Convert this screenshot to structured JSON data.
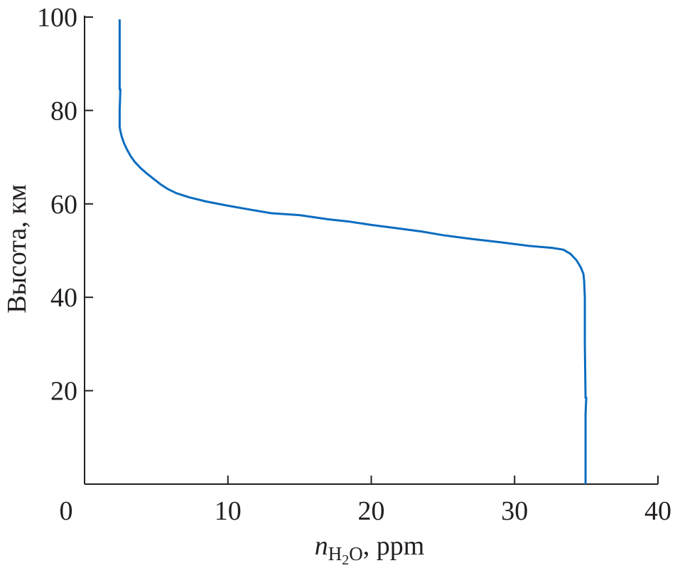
{
  "chart_data": {
    "type": "line",
    "title": "",
    "xlabel": {
      "italic": "n",
      "subscript": "H",
      "subscript_digit": "2",
      "subscript_end": "O",
      "suffix": ", ppm"
    },
    "ylabel": "Высота, км",
    "xlim": [
      0,
      40
    ],
    "ylim": [
      0,
      100
    ],
    "x_ticks": [
      0,
      10,
      20,
      30,
      40
    ],
    "y_ticks": [
      20,
      40,
      60,
      80,
      100
    ],
    "grid": false,
    "legend": "none",
    "series": [
      {
        "color": "#0b6cbf",
        "points": [
          [
            34.95,
            0
          ],
          [
            34.95,
            15
          ],
          [
            35.0,
            18.5
          ],
          [
            34.95,
            18.5
          ],
          [
            34.9,
            30
          ],
          [
            34.9,
            40
          ],
          [
            34.85,
            43.5
          ],
          [
            34.8,
            45
          ],
          [
            34.6,
            46.5
          ],
          [
            34.3,
            48
          ],
          [
            33.9,
            49.3
          ],
          [
            33.4,
            50.2
          ],
          [
            32.6,
            50.6
          ],
          [
            31.0,
            51.0
          ],
          [
            29.0,
            51.8
          ],
          [
            27.0,
            52.5
          ],
          [
            25.0,
            53.3
          ],
          [
            23.5,
            54.1
          ],
          [
            22.0,
            54.7
          ],
          [
            20.0,
            55.5
          ],
          [
            18.5,
            56.2
          ],
          [
            17.0,
            56.7
          ],
          [
            15.0,
            57.6
          ],
          [
            13.0,
            58.0
          ],
          [
            11.5,
            58.8
          ],
          [
            10.0,
            59.6
          ],
          [
            8.5,
            60.5
          ],
          [
            7.3,
            61.4
          ],
          [
            6.4,
            62.3
          ],
          [
            5.8,
            63.2
          ],
          [
            5.3,
            64.2
          ],
          [
            4.8,
            65.4
          ],
          [
            4.3,
            66.6
          ],
          [
            3.9,
            67.7
          ],
          [
            3.5,
            69.0
          ],
          [
            3.2,
            70.3
          ],
          [
            2.95,
            71.7
          ],
          [
            2.75,
            73.0
          ],
          [
            2.6,
            74.3
          ],
          [
            2.5,
            75.6
          ],
          [
            2.45,
            76.5
          ],
          [
            2.45,
            80
          ],
          [
            2.5,
            84.5
          ],
          [
            2.45,
            84.5
          ],
          [
            2.45,
            95
          ],
          [
            2.45,
            99.5
          ]
        ]
      }
    ]
  }
}
